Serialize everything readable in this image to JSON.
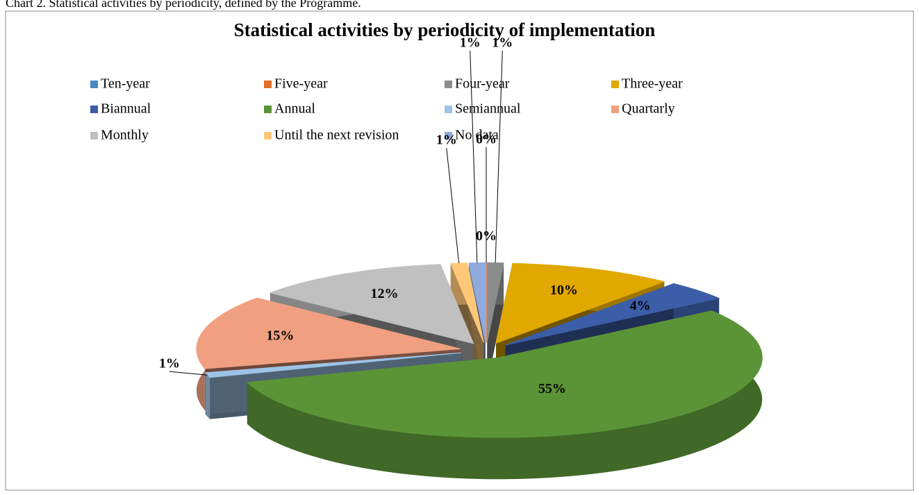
{
  "caption": "Chart 2. Statistical activities by periodicity, defined by the Programme.",
  "chart_data": {
    "type": "pie",
    "title": "Statistical activities by periodicity of implementation",
    "categories": [
      "Ten-year",
      "Five-year",
      "Four-year",
      "Three-year",
      "Biannual",
      "Annual",
      "Semiannual",
      "Quartarly",
      "Monthly",
      "Until the next revision",
      "No data"
    ],
    "values": [
      0,
      0,
      1,
      10,
      4,
      55,
      1,
      15,
      12,
      1,
      1
    ],
    "value_labels": [
      "0%",
      "0%",
      "1%",
      "10%",
      "4%",
      "55%",
      "1%",
      "15%",
      "12%",
      "1%",
      "1%"
    ],
    "colors": [
      "#4a8ac4",
      "#e0702a",
      "#8c8c8c",
      "#e0a800",
      "#3c5ea8",
      "#5b9437",
      "#9dc3e6",
      "#f0a080",
      "#c0c0c0",
      "#ffc879",
      "#8faadc"
    ],
    "legend": "top"
  }
}
